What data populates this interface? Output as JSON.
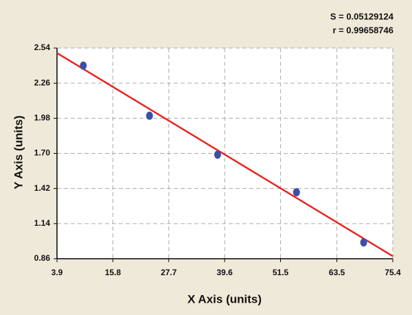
{
  "chart_data": {
    "type": "scatter",
    "annotations": [
      "S = 0.05129124",
      "r = 0.99658746"
    ],
    "xlabel": "X Axis (units)",
    "ylabel": "Y Axis (units)",
    "xlim": [
      3.9,
      75.4
    ],
    "xticks": [
      3.9,
      15.8,
      27.7,
      39.6,
      51.5,
      63.5,
      75.4
    ],
    "ylim": [
      0.86,
      2.54
    ],
    "yticks": [
      0.86,
      1.14,
      1.42,
      {
        "value": 1.7,
        "label": "1.70"
      },
      1.98,
      2.26,
      2.54
    ],
    "grid": true,
    "series": [
      {
        "color": "#3a4fa8",
        "x": [
          9.5,
          23.6,
          38.1,
          54.9,
          69.2
        ],
        "values": [
          2.4,
          2.0,
          1.69,
          1.39,
          0.99
        ]
      }
    ],
    "fit_line": {
      "color": "#e8231f",
      "x": [
        3.9,
        75.4
      ],
      "values": [
        2.5,
        0.88
      ]
    }
  }
}
